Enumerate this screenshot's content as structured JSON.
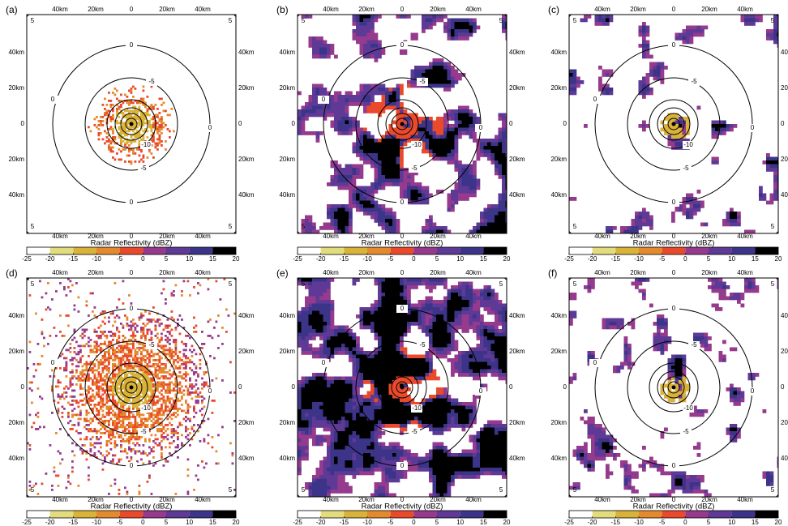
{
  "panels": [
    {
      "label": "(a)"
    },
    {
      "label": "(b)"
    },
    {
      "label": "(c)"
    },
    {
      "label": "(d)"
    },
    {
      "label": "(e)"
    },
    {
      "label": "(f)"
    }
  ],
  "axes": {
    "x_ticks": [
      "40km",
      "20km",
      "0",
      "20km",
      "40km"
    ],
    "y_ticks": [
      "40km",
      "20km",
      "0",
      "20km",
      "40km"
    ]
  },
  "rings": [
    {
      "label": "0"
    },
    {
      "label": "-5"
    },
    {
      "label": "-10"
    }
  ],
  "corner_label": "5",
  "colorbar": {
    "title": "Radar Reflectivity (dBZ)",
    "ticks": [
      -25,
      -20,
      -15,
      -10,
      -5,
      0,
      5,
      10,
      15,
      20
    ],
    "colors": [
      "#ffffff",
      "#e3dc7e",
      "#d9b23a",
      "#e48a2e",
      "#ea4a2c",
      "#963a8e",
      "#5e3a96",
      "#3c3488",
      "#000000"
    ]
  }
}
